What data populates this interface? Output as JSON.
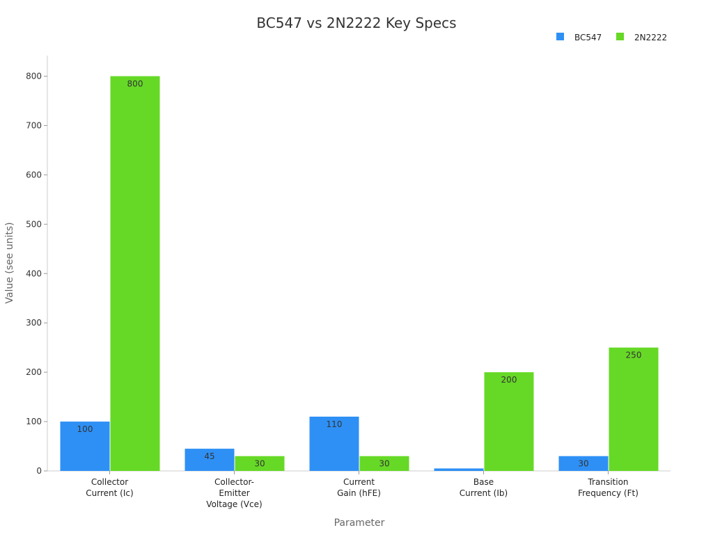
{
  "chart_data": {
    "type": "bar",
    "title": "BC547 vs 2N2222 Key Specs",
    "xlabel": "Parameter",
    "ylabel": "Value (see units)",
    "categories": [
      [
        "Collector",
        "Current (Ic)"
      ],
      [
        "Collector-",
        "Emitter",
        "Voltage (Vce)"
      ],
      [
        "Current",
        "Gain (hFE)"
      ],
      [
        "Base",
        "Current (Ib)"
      ],
      [
        "Transition",
        "Frequency (Ft)"
      ]
    ],
    "series": [
      {
        "name": "BC547",
        "color": "#2e90f5",
        "values": [
          100,
          45,
          110,
          5,
          30
        ]
      },
      {
        "name": "2N2222",
        "color": "#66d926",
        "values": [
          800,
          30,
          30,
          200,
          250
        ]
      }
    ],
    "ylim": [
      0,
      840
    ],
    "yticks": [
      0,
      100,
      200,
      300,
      400,
      500,
      600,
      700,
      800
    ],
    "grid": false,
    "legend": "top-right"
  }
}
